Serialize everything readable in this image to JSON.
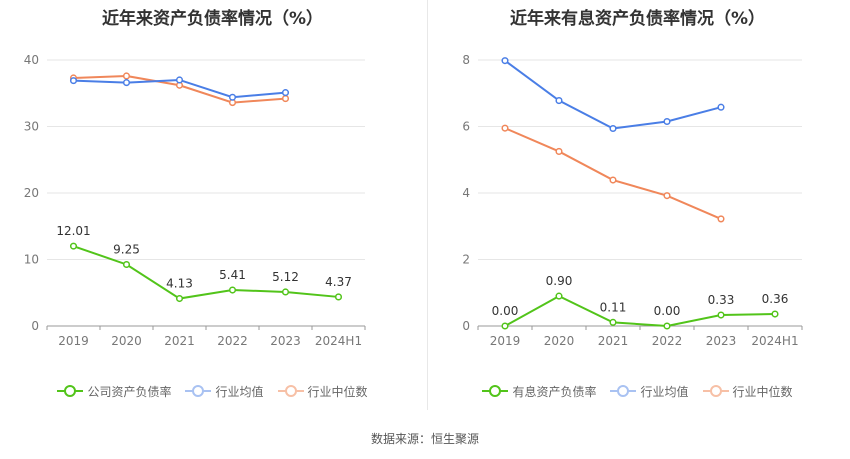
{
  "chart_data": [
    {
      "type": "line",
      "title": "近年来资产负债率情况（%）",
      "categories": [
        "2019",
        "2020",
        "2021",
        "2022",
        "2023",
        "2024H1"
      ],
      "ylim": [
        0,
        40
      ],
      "yticks": [
        "0",
        "10",
        "20",
        "30",
        "40"
      ],
      "grid": true,
      "legend_position": "bottom",
      "series": [
        {
          "name": "公司资产负债率",
          "color": "#52c41a",
          "values": [
            12.01,
            9.25,
            4.13,
            5.41,
            5.12,
            4.37
          ],
          "labels": [
            "12.01",
            "9.25",
            "4.13",
            "5.41",
            "5.12",
            "4.37"
          ]
        },
        {
          "name": "行业均值",
          "color": "#4a7ee6",
          "values": [
            36.9,
            36.6,
            37.0,
            34.4,
            35.1,
            null
          ]
        },
        {
          "name": "行业中位数",
          "color": "#f0875a",
          "values": [
            37.3,
            37.6,
            36.2,
            33.6,
            34.2,
            null
          ]
        }
      ]
    },
    {
      "type": "line",
      "title": "近年来有息资产负债率情况（%）",
      "categories": [
        "2019",
        "2020",
        "2021",
        "2022",
        "2023",
        "2024H1"
      ],
      "ylim": [
        0,
        8
      ],
      "yticks": [
        "0",
        "2",
        "4",
        "6",
        "8"
      ],
      "grid": true,
      "legend_position": "bottom",
      "series": [
        {
          "name": "有息资产负债率",
          "color": "#52c41a",
          "values": [
            0.0,
            0.9,
            0.11,
            0.0,
            0.33,
            0.36
          ],
          "labels": [
            "0.00",
            "0.90",
            "0.11",
            "0.00",
            "0.33",
            "0.36"
          ]
        },
        {
          "name": "行业均值",
          "color": "#4a7ee6",
          "values": [
            7.98,
            6.78,
            5.94,
            6.15,
            6.58,
            null
          ]
        },
        {
          "name": "行业中位数",
          "color": "#f0875a",
          "values": [
            5.95,
            5.25,
            4.39,
            3.92,
            3.22,
            null
          ]
        }
      ]
    }
  ],
  "source": "数据来源：恒生聚源"
}
